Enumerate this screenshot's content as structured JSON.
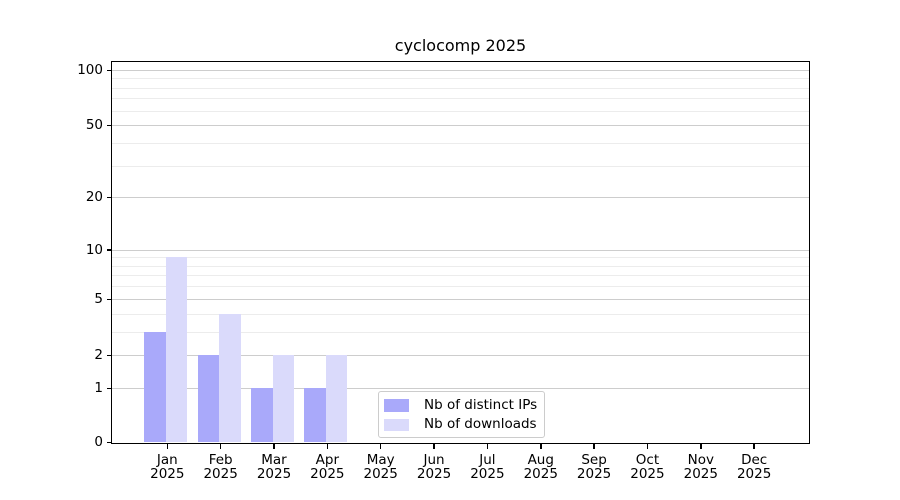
{
  "title": "cyclocomp 2025",
  "chart_data": {
    "type": "bar",
    "title": "cyclocomp 2025",
    "categories": [
      "Jan",
      "Feb",
      "Mar",
      "Apr",
      "May",
      "Jun",
      "Jul",
      "Aug",
      "Sep",
      "Oct",
      "Nov",
      "Dec"
    ],
    "category_year": "2025",
    "series": [
      {
        "name": "Nb of distinct IPs",
        "color": "#a9a9fa",
        "values": [
          3,
          2,
          1,
          1,
          0,
          0,
          0,
          0,
          0,
          0,
          0,
          0
        ]
      },
      {
        "name": "Nb of downloads",
        "color": "#dadafb",
        "values": [
          9,
          4,
          2,
          2,
          0,
          0,
          0,
          0,
          0,
          0,
          0,
          0
        ]
      }
    ],
    "xlabel": "",
    "ylabel": "",
    "yscale": "log1p",
    "ylim": [
      0,
      112
    ],
    "yticks": [
      0,
      1,
      2,
      5,
      10,
      20,
      50,
      100
    ],
    "yticks_minor": [
      3,
      4,
      6,
      7,
      8,
      9,
      30,
      40,
      60,
      70,
      80,
      90
    ],
    "grid": "horizontal",
    "legend_position": "inside-bottom-center"
  },
  "legend": {
    "items": [
      {
        "label": "Nb of distinct IPs",
        "color": "#a9a9fa"
      },
      {
        "label": "Nb of downloads",
        "color": "#dadafb"
      }
    ]
  },
  "colors": {
    "bar_distinct_ips": "#a9a9fa",
    "bar_downloads": "#dadafb",
    "grid_major": "#cdcdcd",
    "grid_minor": "#ececec",
    "axis": "#000000",
    "legend_border": "#cccccc",
    "background": "#ffffff"
  }
}
